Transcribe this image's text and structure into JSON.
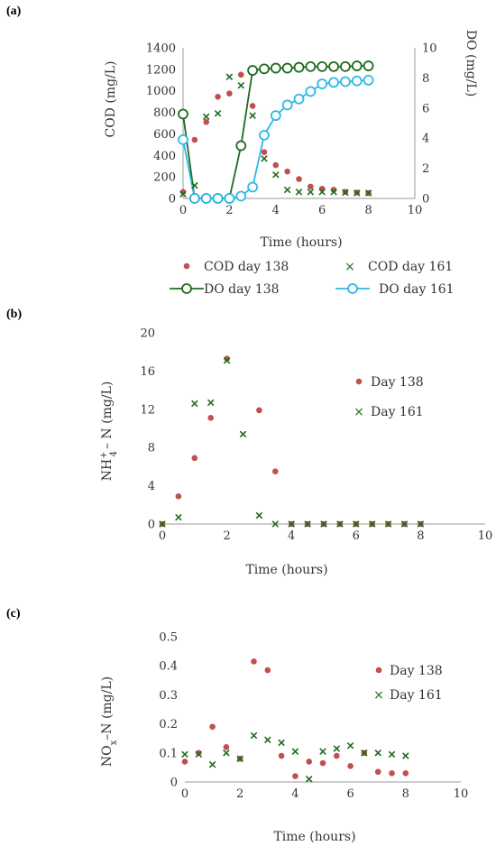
{
  "colors": {
    "red": "#c0504d",
    "green": "#1e6b1e",
    "cyan": "#2eb8e6",
    "axis": "#9a9a9a"
  },
  "chart_data": [
    {
      "panel": "(a)",
      "type": "scatter",
      "xlabel": "Time (hours)",
      "ylabel": "COD (mg/L)",
      "y2label": "DO (mg/L)",
      "xlim": [
        0,
        10
      ],
      "ylim": [
        0,
        1400
      ],
      "y2lim": [
        0,
        10
      ],
      "xticks": [
        "0",
        "2",
        "4",
        "6",
        "8",
        "10"
      ],
      "yticks": [
        "0",
        "200",
        "400",
        "600",
        "800",
        "1000",
        "1200",
        "1400"
      ],
      "y2ticks": [
        "0",
        "2",
        "4",
        "6",
        "8",
        "10"
      ],
      "grid": false,
      "legend_position": "bottom",
      "series": [
        {
          "name": "COD day 138",
          "marker": "dot",
          "color": "red",
          "axis": "left",
          "x": [
            0,
            0.5,
            1,
            1.5,
            2,
            2.5,
            3,
            3.5,
            4,
            4.5,
            5,
            5.5,
            6,
            6.5,
            7,
            7.5,
            8
          ],
          "y": [
            60,
            545,
            710,
            945,
            975,
            1150,
            860,
            430,
            310,
            250,
            180,
            110,
            90,
            80,
            60,
            55,
            50
          ]
        },
        {
          "name": "COD day 161",
          "marker": "x",
          "color": "green",
          "axis": "left",
          "x": [
            0,
            0.5,
            1,
            1.5,
            2,
            2.5,
            3,
            3.5,
            4,
            4.5,
            5,
            5.5,
            6,
            6.5,
            7,
            7.5,
            8
          ],
          "y": [
            40,
            120,
            760,
            790,
            1130,
            1050,
            770,
            370,
            220,
            80,
            60,
            60,
            60,
            60,
            55,
            50,
            50
          ]
        },
        {
          "name": "DO day 138",
          "marker": "open-circle-line",
          "color": "green",
          "axis": "right",
          "x": [
            0,
            0.5,
            1,
            1.5,
            2,
            2.5,
            3,
            3.5,
            4,
            4.5,
            5,
            5.5,
            6,
            6.5,
            7,
            7.5,
            8
          ],
          "y": [
            5.6,
            0,
            0,
            0,
            0,
            3.5,
            8.5,
            8.6,
            8.65,
            8.65,
            8.7,
            8.75,
            8.75,
            8.75,
            8.75,
            8.8,
            8.8
          ]
        },
        {
          "name": "DO day 161",
          "marker": "open-circle-line",
          "color": "cyan",
          "axis": "right",
          "x": [
            0,
            0.5,
            1,
            1.5,
            2,
            2.5,
            3,
            3.5,
            4,
            4.5,
            5,
            5.5,
            6,
            6.5,
            7,
            7.5,
            8
          ],
          "y": [
            3.9,
            0,
            0,
            0,
            0,
            0.15,
            0.75,
            4.2,
            5.5,
            6.2,
            6.6,
            7.1,
            7.6,
            7.7,
            7.75,
            7.8,
            7.85
          ]
        }
      ]
    },
    {
      "panel": "(b)",
      "type": "scatter",
      "xlabel": "Time (hours)",
      "ylabel_main": "NH",
      "ylabel_sup": "+",
      "ylabel_sub": "4",
      "ylabel_rest": "– N  (mg/L)",
      "xlim": [
        0,
        10
      ],
      "ylim": [
        0,
        20
      ],
      "xticks": [
        "0",
        "2",
        "4",
        "6",
        "8",
        "10"
      ],
      "yticks": [
        "0",
        "4",
        "8",
        "12",
        "16",
        "20"
      ],
      "grid": false,
      "legend_position": "right",
      "series": [
        {
          "name": "Day 138",
          "marker": "dot",
          "color": "red",
          "x": [
            0,
            0.5,
            1,
            1.5,
            2,
            3,
            3.5,
            4,
            4.5,
            5,
            5.5,
            6,
            6.5,
            7,
            7.5,
            8
          ],
          "y": [
            0,
            2.9,
            6.9,
            11.1,
            17.3,
            11.9,
            5.5,
            0,
            0,
            0,
            0,
            0,
            0,
            0,
            0,
            0
          ]
        },
        {
          "name": "Day 161",
          "marker": "x",
          "color": "green",
          "x": [
            0,
            0.5,
            1,
            1.5,
            2,
            2.5,
            3,
            3.5,
            4,
            4.5,
            5,
            5.5,
            6,
            6.5,
            7,
            7.5,
            8
          ],
          "y": [
            0,
            0.7,
            12.6,
            12.7,
            17.1,
            9.4,
            0.9,
            0,
            0,
            0,
            0,
            0,
            0,
            0,
            0,
            0,
            0
          ]
        }
      ]
    },
    {
      "panel": "(c)",
      "type": "scatter",
      "xlabel": "Time (hours)",
      "ylabel_main": "NO",
      "ylabel_sub": "x",
      "ylabel_rest": "–N (mg/L)",
      "xlim": [
        0,
        10
      ],
      "ylim": [
        0,
        0.5
      ],
      "xticks": [
        "0",
        "2",
        "4",
        "6",
        "8",
        "10"
      ],
      "yticks": [
        "0",
        "0.1",
        "0.2",
        "0.3",
        "0.4",
        "0.5"
      ],
      "grid": false,
      "legend_position": "right",
      "series": [
        {
          "name": "Day 138",
          "marker": "dot",
          "color": "red",
          "x": [
            0,
            0.5,
            1,
            1.5,
            2,
            2.5,
            3,
            3.5,
            4,
            4.5,
            5,
            5.5,
            6,
            6.5,
            7,
            7.5,
            8
          ],
          "y": [
            0.07,
            0.1,
            0.19,
            0.12,
            0.08,
            0.415,
            0.385,
            0.09,
            0.02,
            0.07,
            0.065,
            0.09,
            0.055,
            0.1,
            0.035,
            0.03,
            0.03
          ]
        },
        {
          "name": "Day 161",
          "marker": "x",
          "color": "green",
          "x": [
            0,
            0.5,
            1,
            1.5,
            2,
            2.5,
            3,
            3.5,
            4,
            4.5,
            5,
            5.5,
            6,
            6.5,
            7,
            7.5,
            8
          ],
          "y": [
            0.095,
            0.095,
            0.06,
            0.1,
            0.08,
            0.16,
            0.145,
            0.135,
            0.105,
            0.01,
            0.105,
            0.115,
            0.125,
            0.1,
            0.1,
            0.095,
            0.09
          ]
        }
      ]
    }
  ]
}
